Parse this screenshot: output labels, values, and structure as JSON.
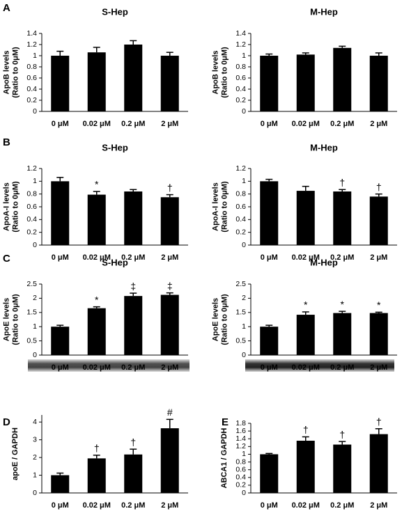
{
  "chart_data": [
    {
      "type": "bar",
      "panel": "A",
      "title": "S-Hep",
      "ylabel": [
        "ApoB levels",
        "(Ratio to 0μM)"
      ],
      "categories": [
        "0 μM",
        "0.02 μM",
        "0.2 μM",
        "2 μM"
      ],
      "values": [
        1.0,
        1.06,
        1.2,
        1.0
      ],
      "errors": [
        0.08,
        0.09,
        0.07,
        0.06
      ],
      "markers": [
        null,
        null,
        null,
        null
      ],
      "color": "#000000",
      "ylim": [
        0,
        1.4
      ],
      "yticks": [
        0,
        0.2,
        0.4,
        0.6,
        0.8,
        1,
        1.2,
        1.4
      ]
    },
    {
      "type": "bar",
      "title": "M-Hep",
      "ylabel": [
        "ApoB levels",
        "(Ratio to 0μM)"
      ],
      "categories": [
        "0 μM",
        "0.02 μM",
        "0.2 μM",
        "2 μM"
      ],
      "values": [
        1.0,
        1.02,
        1.14,
        1.0
      ],
      "errors": [
        0.03,
        0.03,
        0.03,
        0.05
      ],
      "markers": [
        null,
        null,
        null,
        null
      ],
      "color": "#000000",
      "ylim": [
        0,
        1.4
      ],
      "yticks": [
        0,
        0.2,
        0.4,
        0.6,
        0.8,
        1,
        1.2,
        1.4
      ]
    },
    {
      "type": "bar",
      "panel": "B",
      "title": "S-Hep",
      "ylabel": [
        "ApoA-I levels",
        "(Ratio to 0μM)"
      ],
      "categories": [
        "0 μM",
        "0.02 μM",
        "0.2 μM",
        "2 μM"
      ],
      "values": [
        1.0,
        0.79,
        0.84,
        0.75
      ],
      "errors": [
        0.06,
        0.05,
        0.03,
        0.04
      ],
      "markers": [
        null,
        "*",
        null,
        "†"
      ],
      "color": "#000000",
      "ylim": [
        0,
        1.2
      ],
      "yticks": [
        0,
        0.2,
        0.4,
        0.6,
        0.8,
        1,
        1.2
      ]
    },
    {
      "type": "bar",
      "title": "M-Hep",
      "ylabel": [
        "ApoA-I levels",
        "(Ratio to 0μM)"
      ],
      "categories": [
        "0 μM",
        "0.02 μM",
        "0.2 μM",
        "2 μM"
      ],
      "values": [
        1.0,
        0.85,
        0.84,
        0.76
      ],
      "errors": [
        0.03,
        0.07,
        0.03,
        0.04
      ],
      "markers": [
        null,
        null,
        "†",
        "†"
      ],
      "color": "#000000",
      "ylim": [
        0,
        1.2
      ],
      "yticks": [
        0,
        0.2,
        0.4,
        0.6,
        0.8,
        1,
        1.2
      ]
    },
    {
      "type": "bar",
      "panel": "C",
      "title": "S-Hep",
      "ylabel": [
        "ApoE levels",
        "(Ratio to 0μM)"
      ],
      "categories": [
        "0 μM",
        "0.02 μM",
        "0.2 μM",
        "2 μM"
      ],
      "values": [
        1.0,
        1.65,
        2.08,
        2.12
      ],
      "errors": [
        0.05,
        0.05,
        0.1,
        0.07
      ],
      "markers": [
        null,
        "*",
        "‡",
        "‡"
      ],
      "color": "#000000",
      "ylim": [
        0,
        2.5
      ],
      "yticks": [
        0,
        0.5,
        1,
        1.5,
        2,
        2.5
      ]
    },
    {
      "type": "bar",
      "title": "M-Hep",
      "ylabel": [
        "ApoE levels",
        "(Ratio to 0μM)"
      ],
      "categories": [
        "0 μM",
        "0.02 μM",
        "0.2 μM",
        "2 μM"
      ],
      "values": [
        1.0,
        1.42,
        1.48,
        1.48
      ],
      "errors": [
        0.05,
        0.1,
        0.06,
        0.03
      ],
      "markers": [
        null,
        "*",
        "*",
        "*"
      ],
      "color": "#000000",
      "ylim": [
        0,
        2.5
      ],
      "yticks": [
        0,
        0.5,
        1,
        1.5,
        2,
        2.5
      ]
    },
    {
      "type": "bar",
      "panel": "D",
      "ylabel": [
        "apoE / GAPDH"
      ],
      "categories": [
        "0 μM",
        "0.02 μM",
        "0.2 μM",
        "2 μM"
      ],
      "values": [
        1.0,
        1.95,
        2.17,
        3.65
      ],
      "errors": [
        0.12,
        0.18,
        0.3,
        0.5
      ],
      "markers": [
        null,
        "†",
        "†",
        "#"
      ],
      "color": "#000000",
      "ylim": [
        0,
        4.4
      ],
      "yticks": [
        0,
        1,
        2,
        3,
        4
      ]
    },
    {
      "type": "bar",
      "panel": "E",
      "ylabel": [
        "ABCA1 / GAPDH"
      ],
      "categories": [
        "0 μM",
        "0.02 μM",
        "0.2 μM",
        "2 μM"
      ],
      "values": [
        1.0,
        1.35,
        1.25,
        1.52
      ],
      "errors": [
        0.02,
        0.1,
        0.08,
        0.14
      ],
      "markers": [
        null,
        "†",
        "†",
        "†"
      ],
      "color": "#000000",
      "ylim": [
        0,
        1.8
      ],
      "yticks": [
        0,
        0.2,
        0.4,
        0.6,
        0.8,
        1,
        1.2,
        1.4,
        1.6,
        1.8
      ]
    }
  ]
}
